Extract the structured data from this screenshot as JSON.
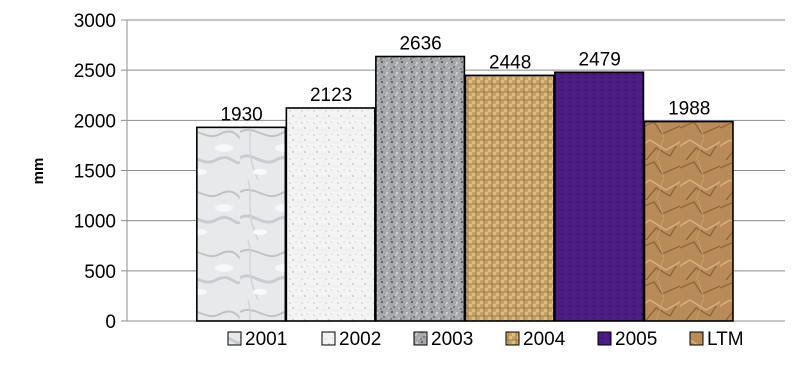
{
  "chart_data": {
    "type": "bar",
    "categories": [
      "2001",
      "2002",
      "2003",
      "2004",
      "2005",
      "LTM"
    ],
    "values": [
      1930,
      2123,
      2636,
      2448,
      2479,
      1988
    ],
    "data_labels": [
      "1930",
      "2123",
      "2636",
      "2448",
      "2479",
      "1988"
    ],
    "ylabel": "mm",
    "ylim": [
      0,
      3000
    ],
    "yticks": [
      0,
      500,
      1000,
      1500,
      2000,
      2500,
      3000
    ],
    "grid": "horizontal",
    "legend": {
      "position": "bottom",
      "entries": [
        "2001",
        "2002",
        "2003",
        "2004",
        "2005",
        "LTM"
      ]
    },
    "bar_styles": [
      {
        "texture": "white-marble",
        "base": "#e6e8ea",
        "accent": "#b9bdc3"
      },
      {
        "texture": "light-granite",
        "base": "#f4f4f4",
        "accent": "#c9c9c9"
      },
      {
        "texture": "grey-granite",
        "base": "#a5a7ab",
        "accent": "#55575c"
      },
      {
        "texture": "woven-canvas",
        "base": "#d9b97d",
        "accent": "#8c6a3a"
      },
      {
        "texture": "purple-fabric",
        "base": "#4a1a80",
        "accent": "#2c0c57"
      },
      {
        "texture": "brown-paper",
        "base": "#b88a57",
        "accent": "#7a5630"
      }
    ]
  }
}
